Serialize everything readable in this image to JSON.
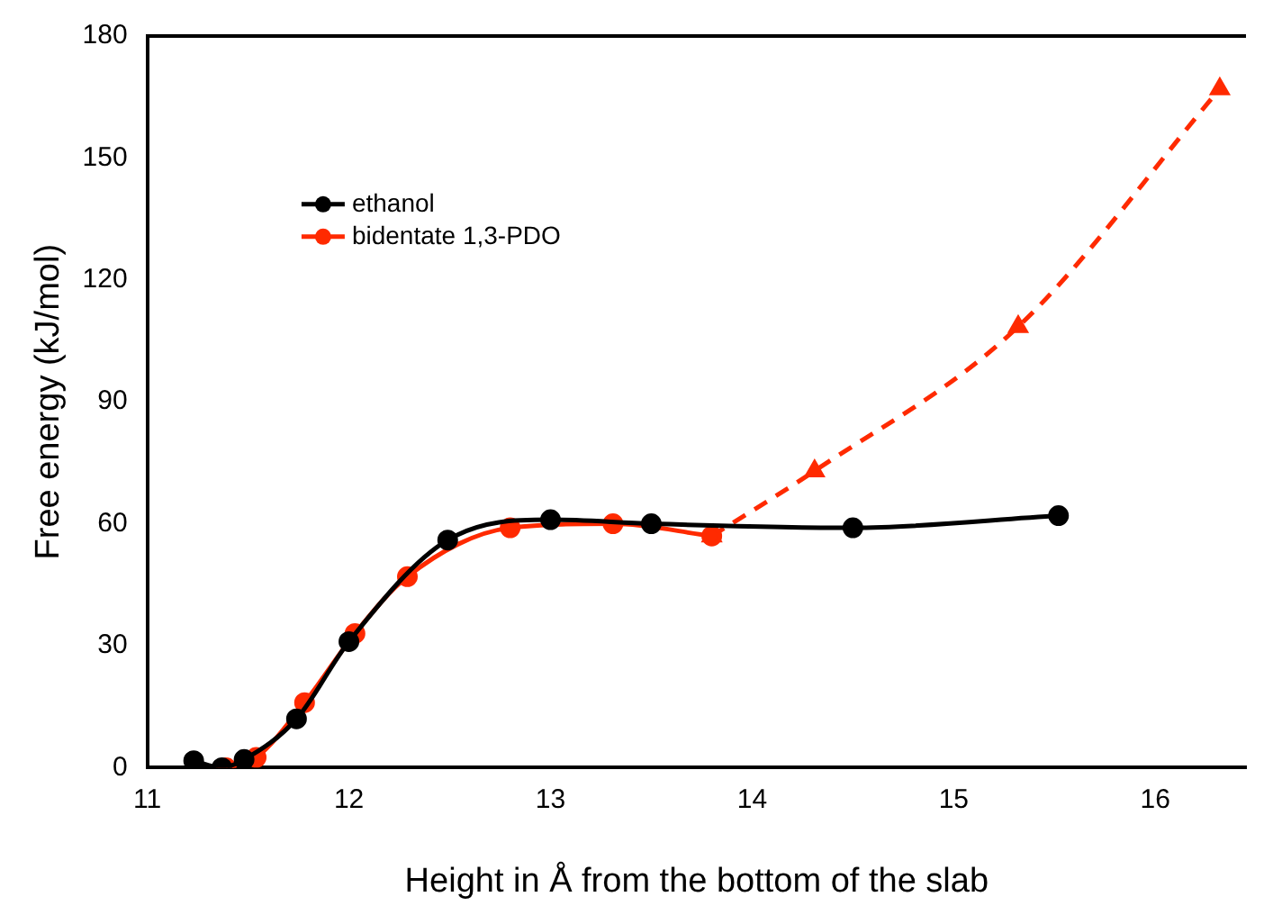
{
  "chart_data": {
    "type": "line",
    "xlabel": "Height in Å from the bottom of the slab",
    "ylabel": "Free energy (kJ/mol)",
    "xlim": [
      11,
      16.45
    ],
    "xticks": [
      11,
      12,
      13,
      14,
      15,
      16
    ],
    "ylim": [
      0,
      180
    ],
    "yticks": [
      0,
      30,
      60,
      90,
      120,
      150,
      180
    ],
    "grid": false,
    "legend": "top left",
    "series": [
      {
        "name": "ethanol",
        "color": "#000000",
        "marker": "circle",
        "line_style": "solid",
        "x": [
          11.23,
          11.37,
          11.48,
          11.74,
          12.0,
          12.49,
          13.0,
          13.5,
          14.5,
          15.52
        ],
        "values": [
          1.7,
          0,
          2,
          12,
          31,
          56,
          61,
          60,
          59,
          62
        ]
      },
      {
        "name": "bidentate 1,3-PDO",
        "color": "#ff2a00",
        "marker": "circle",
        "line_style": "solid",
        "x": [
          11.39,
          11.54,
          11.78,
          12.03,
          12.29,
          12.8,
          13.31,
          13.8
        ],
        "values": [
          0,
          2.5,
          16,
          33,
          47,
          59,
          60,
          57
        ]
      },
      {
        "color": "#ff2a00",
        "marker": "triangle",
        "line_style": "dashed",
        "x": [
          13.8,
          14.31,
          15.32,
          16.32
        ],
        "values": [
          57,
          73,
          108.5,
          167
        ]
      }
    ]
  }
}
